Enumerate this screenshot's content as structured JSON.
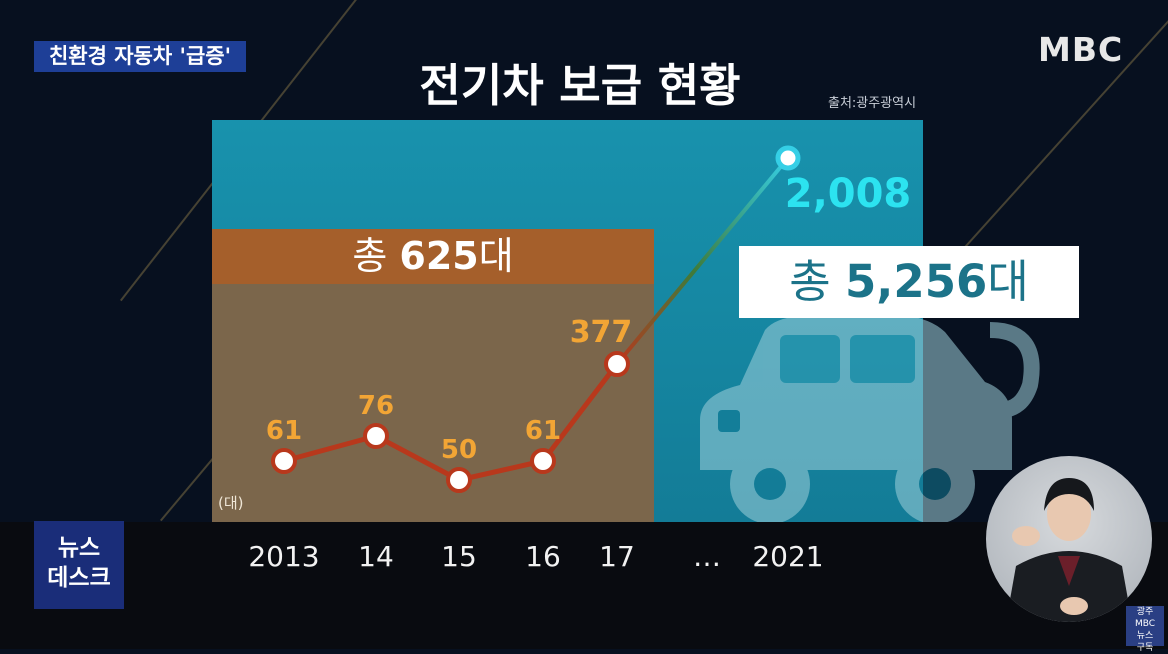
{
  "caption": "친환경 자동차 '급증'",
  "broadcaster": "MBC",
  "news_logo": {
    "line1": "뉴스",
    "line2": "데스크"
  },
  "mini_logo": {
    "line1": "광주 MBC",
    "line2": "뉴스",
    "line3": "구독"
  },
  "colors": {
    "teal_panel": "#1892ad",
    "brown_panel": "#7b664b",
    "orange_bar": "#a55f2b",
    "line_orange": "#b8381c",
    "label_orange": "#f2a535",
    "label_cyan": "#2ce3f0"
  },
  "chart_data": {
    "type": "line",
    "title": "전기차 보급 현황",
    "source": "출처:광주광역시",
    "unit_label": "(대)",
    "x": [
      "2013",
      "14",
      "15",
      "16",
      "17",
      "…",
      "2021"
    ],
    "series": [
      {
        "values": [
          61,
          76,
          50,
          61,
          377,
          null,
          2008
        ],
        "labels": [
          "61",
          "76",
          "50",
          "61",
          "377",
          "",
          "2,008"
        ]
      }
    ],
    "totals": [
      {
        "prefix": "총 ",
        "value": "625",
        "suffix": "대"
      },
      {
        "prefix": "총 ",
        "value": "5,256",
        "suffix": "대"
      }
    ],
    "axis_break_after": "17",
    "grid": false,
    "legend": "none"
  }
}
